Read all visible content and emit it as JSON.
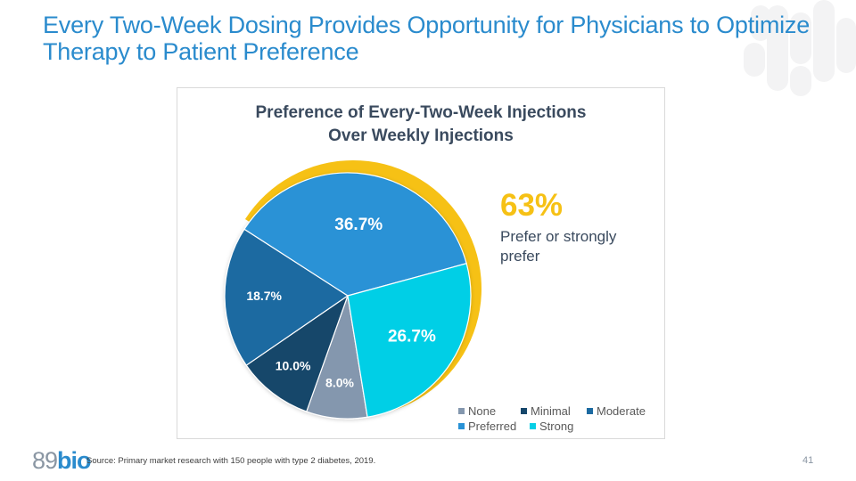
{
  "slide": {
    "title": "Every Two-Week Dosing Provides Opportunity for Physicians to Optimize Therapy to Patient Preference",
    "source": "Source: Primary market research with 150 people with type 2 diabetes, 2019.",
    "page_number": "41",
    "logo": {
      "num": "89",
      "bio": "bio"
    }
  },
  "callout": {
    "value": "63%",
    "text": "Prefer or strongly prefer",
    "color": "#f6c115"
  },
  "chart_data": {
    "type": "pie",
    "title_line1": "Preference of Every-Two-Week Injections",
    "title_line2": "Over Weekly Injections",
    "categories": [
      "None",
      "Minimal",
      "Moderate",
      "Preferred",
      "Strong"
    ],
    "values": [
      8.0,
      10.0,
      18.7,
      36.7,
      26.7
    ],
    "labels": [
      "8.0%",
      "10.0%",
      "18.7%",
      "36.7%",
      "26.7%"
    ],
    "colors": [
      "#8497ae",
      "#16476b",
      "#1c6aa1",
      "#2992d6",
      "#05cfe6"
    ],
    "highlight": {
      "categories": [
        "Preferred",
        "Strong"
      ],
      "total": "63%",
      "color": "#f6c115"
    },
    "legend_position": "bottom-right"
  }
}
